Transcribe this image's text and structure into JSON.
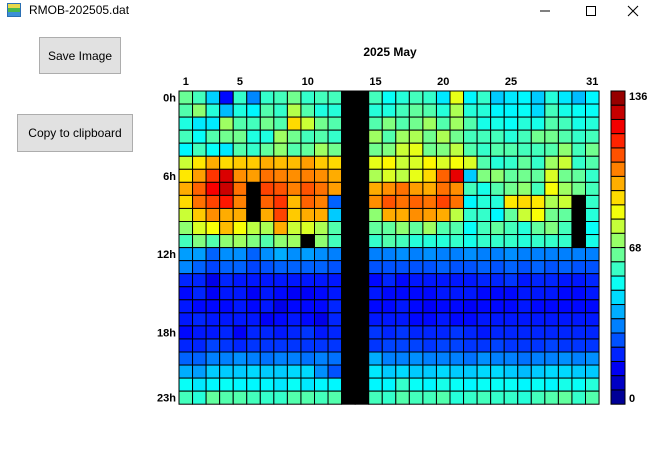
{
  "window": {
    "title": "RMOB-202505.dat",
    "icon": "rmob-app-icon",
    "controls": [
      "minimize-icon",
      "maximize-icon",
      "close-icon"
    ]
  },
  "buttons": {
    "save": "Save Image",
    "copy": "Copy to clipboard"
  },
  "chart_data": {
    "type": "heatmap",
    "title": "2025 May",
    "x_tick_labels": [
      "1",
      "5",
      "10",
      "15",
      "20",
      "25",
      "31"
    ],
    "x_tick_days": [
      1,
      5,
      10,
      15,
      20,
      25,
      31
    ],
    "y_tick_labels": [
      "0h",
      "6h",
      "12h",
      "18h",
      "23h"
    ],
    "y_tick_hours": [
      0,
      6,
      12,
      18,
      23
    ],
    "days": 31,
    "hours": 24,
    "colorbar": {
      "min": 0,
      "max": 136,
      "labels": [
        "136",
        "68",
        "0"
      ],
      "label_values": [
        136,
        68,
        0
      ]
    },
    "missing_value": null,
    "missing_color": "#000000",
    "colormap": "jet",
    "values_by_day": [
      [
        65,
        62,
        55,
        60,
        50,
        78,
        88,
        96,
        90,
        78,
        70,
        60,
        38,
        35,
        22,
        18,
        20,
        20,
        18,
        22,
        30,
        40,
        52,
        60
      ],
      [
        60,
        70,
        48,
        52,
        60,
        88,
        98,
        106,
        104,
        92,
        80,
        68,
        38,
        30,
        22,
        22,
        18,
        22,
        20,
        22,
        30,
        38,
        48,
        56
      ],
      [
        45,
        56,
        48,
        62,
        52,
        96,
        112,
        120,
        110,
        100,
        84,
        62,
        30,
        26,
        14,
        16,
        18,
        20,
        20,
        26,
        34,
        44,
        50,
        64
      ],
      [
        18,
        42,
        72,
        66,
        48,
        90,
        124,
        126,
        116,
        96,
        94,
        70,
        36,
        30,
        22,
        20,
        18,
        20,
        22,
        24,
        34,
        44,
        52,
        62
      ],
      [
        58,
        55,
        62,
        66,
        62,
        92,
        100,
        104,
        102,
        96,
        84,
        72,
        36,
        30,
        20,
        20,
        20,
        20,
        16,
        22,
        36,
        44,
        50,
        62
      ],
      [
        35,
        50,
        60,
        55,
        58,
        92,
        98,
        null,
        null,
        null,
        76,
        68,
        30,
        26,
        20,
        16,
        18,
        20,
        22,
        24,
        34,
        46,
        50,
        60
      ],
      [
        58,
        62,
        66,
        55,
        64,
        96,
        104,
        110,
        106,
        96,
        74,
        62,
        36,
        28,
        20,
        20,
        20,
        16,
        22,
        24,
        32,
        44,
        50,
        58
      ],
      [
        60,
        58,
        62,
        72,
        70,
        94,
        102,
        108,
        112,
        110,
        96,
        70,
        40,
        30,
        20,
        18,
        14,
        18,
        20,
        24,
        34,
        44,
        48,
        58
      ],
      [
        66,
        75,
        90,
        66,
        62,
        94,
        100,
        102,
        94,
        92,
        78,
        72,
        36,
        30,
        20,
        16,
        18,
        20,
        22,
        24,
        34,
        46,
        52,
        62
      ],
      [
        58,
        62,
        78,
        60,
        64,
        98,
        102,
        108,
        106,
        96,
        80,
        null,
        38,
        30,
        20,
        16,
        18,
        18,
        24,
        24,
        32,
        46,
        48,
        62
      ],
      [
        60,
        55,
        66,
        62,
        72,
        92,
        100,
        104,
        102,
        96,
        74,
        70,
        36,
        30,
        20,
        18,
        18,
        14,
        20,
        24,
        34,
        36,
        50,
        60
      ],
      [
        60,
        56,
        62,
        58,
        66,
        90,
        96,
        98,
        30,
        44,
        62,
        60,
        34,
        28,
        20,
        20,
        22,
        22,
        22,
        24,
        32,
        28,
        50,
        62
      ],
      [
        null,
        null,
        null,
        null,
        null,
        null,
        null,
        null,
        null,
        null,
        null,
        null,
        null,
        null,
        null,
        null,
        null,
        null,
        null,
        null,
        null,
        null,
        null,
        null
      ],
      [
        null,
        null,
        null,
        null,
        null,
        null,
        null,
        null,
        null,
        null,
        null,
        null,
        null,
        null,
        null,
        null,
        null,
        null,
        null,
        null,
        null,
        null,
        null,
        null
      ],
      [
        60,
        56,
        62,
        72,
        66,
        82,
        74,
        96,
        100,
        70,
        64,
        58,
        34,
        28,
        18,
        20,
        18,
        20,
        24,
        24,
        40,
        48,
        50,
        60
      ],
      [
        52,
        55,
        68,
        62,
        68,
        86,
        80,
        100,
        108,
        96,
        64,
        62,
        34,
        28,
        22,
        18,
        18,
        20,
        22,
        26,
        34,
        44,
        50,
        58
      ],
      [
        56,
        60,
        62,
        72,
        78,
        78,
        76,
        104,
        104,
        96,
        70,
        60,
        36,
        28,
        18,
        18,
        20,
        20,
        24,
        26,
        34,
        46,
        58,
        62
      ],
      [
        60,
        64,
        66,
        74,
        82,
        80,
        82,
        98,
        106,
        100,
        64,
        56,
        34,
        28,
        20,
        18,
        18,
        18,
        22,
        26,
        36,
        44,
        52,
        60
      ],
      [
        58,
        62,
        72,
        66,
        66,
        86,
        90,
        96,
        104,
        98,
        72,
        56,
        36,
        28,
        20,
        18,
        16,
        18,
        22,
        24,
        34,
        44,
        50,
        60
      ],
      [
        48,
        56,
        62,
        74,
        68,
        80,
        106,
        104,
        110,
        96,
        62,
        56,
        34,
        30,
        20,
        20,
        18,
        20,
        22,
        26,
        34,
        46,
        54,
        62
      ],
      [
        82,
        74,
        72,
        66,
        76,
        84,
        122,
        100,
        104,
        76,
        62,
        58,
        34,
        28,
        20,
        20,
        18,
        18,
        24,
        26,
        34,
        44,
        52,
        56
      ],
      [
        50,
        56,
        62,
        60,
        62,
        80,
        44,
        60,
        50,
        58,
        52,
        54,
        36,
        28,
        20,
        20,
        16,
        18,
        22,
        24,
        32,
        44,
        50,
        58
      ],
      [
        58,
        56,
        54,
        60,
        58,
        62,
        68,
        54,
        56,
        58,
        60,
        58,
        34,
        30,
        22,
        18,
        18,
        20,
        20,
        24,
        36,
        46,
        52,
        60
      ],
      [
        44,
        50,
        54,
        60,
        62,
        56,
        70,
        62,
        56,
        50,
        64,
        58,
        34,
        28,
        22,
        18,
        18,
        20,
        22,
        26,
        34,
        46,
        52,
        58
      ],
      [
        48,
        50,
        52,
        56,
        62,
        58,
        64,
        66,
        88,
        64,
        60,
        58,
        36,
        30,
        24,
        18,
        18,
        20,
        22,
        24,
        34,
        44,
        52,
        58
      ],
      [
        50,
        52,
        56,
        60,
        60,
        64,
        66,
        70,
        90,
        78,
        56,
        56,
        34,
        28,
        20,
        20,
        20,
        20,
        22,
        24,
        32,
        42,
        50,
        56
      ],
      [
        44,
        46,
        54,
        66,
        60,
        58,
        64,
        60,
        88,
        84,
        64,
        58,
        34,
        30,
        22,
        20,
        18,
        20,
        22,
        24,
        34,
        44,
        52,
        60
      ],
      [
        56,
        60,
        62,
        66,
        62,
        72,
        80,
        84,
        74,
        66,
        68,
        58,
        34,
        28,
        22,
        20,
        18,
        20,
        22,
        26,
        34,
        46,
        50,
        62
      ],
      [
        48,
        54,
        60,
        62,
        70,
        78,
        66,
        72,
        78,
        64,
        60,
        58,
        34,
        30,
        20,
        18,
        18,
        20,
        22,
        24,
        36,
        46,
        54,
        64
      ],
      [
        42,
        52,
        54,
        58,
        60,
        58,
        64,
        66,
        null,
        null,
        null,
        null,
        34,
        28,
        20,
        18,
        18,
        20,
        22,
        24,
        34,
        44,
        52,
        58
      ],
      [
        50,
        52,
        56,
        60,
        66,
        62,
        58,
        60,
        58,
        56,
        52,
        54,
        34,
        28,
        22,
        20,
        18,
        20,
        22,
        24,
        36,
        44,
        56,
        62
      ]
    ]
  }
}
